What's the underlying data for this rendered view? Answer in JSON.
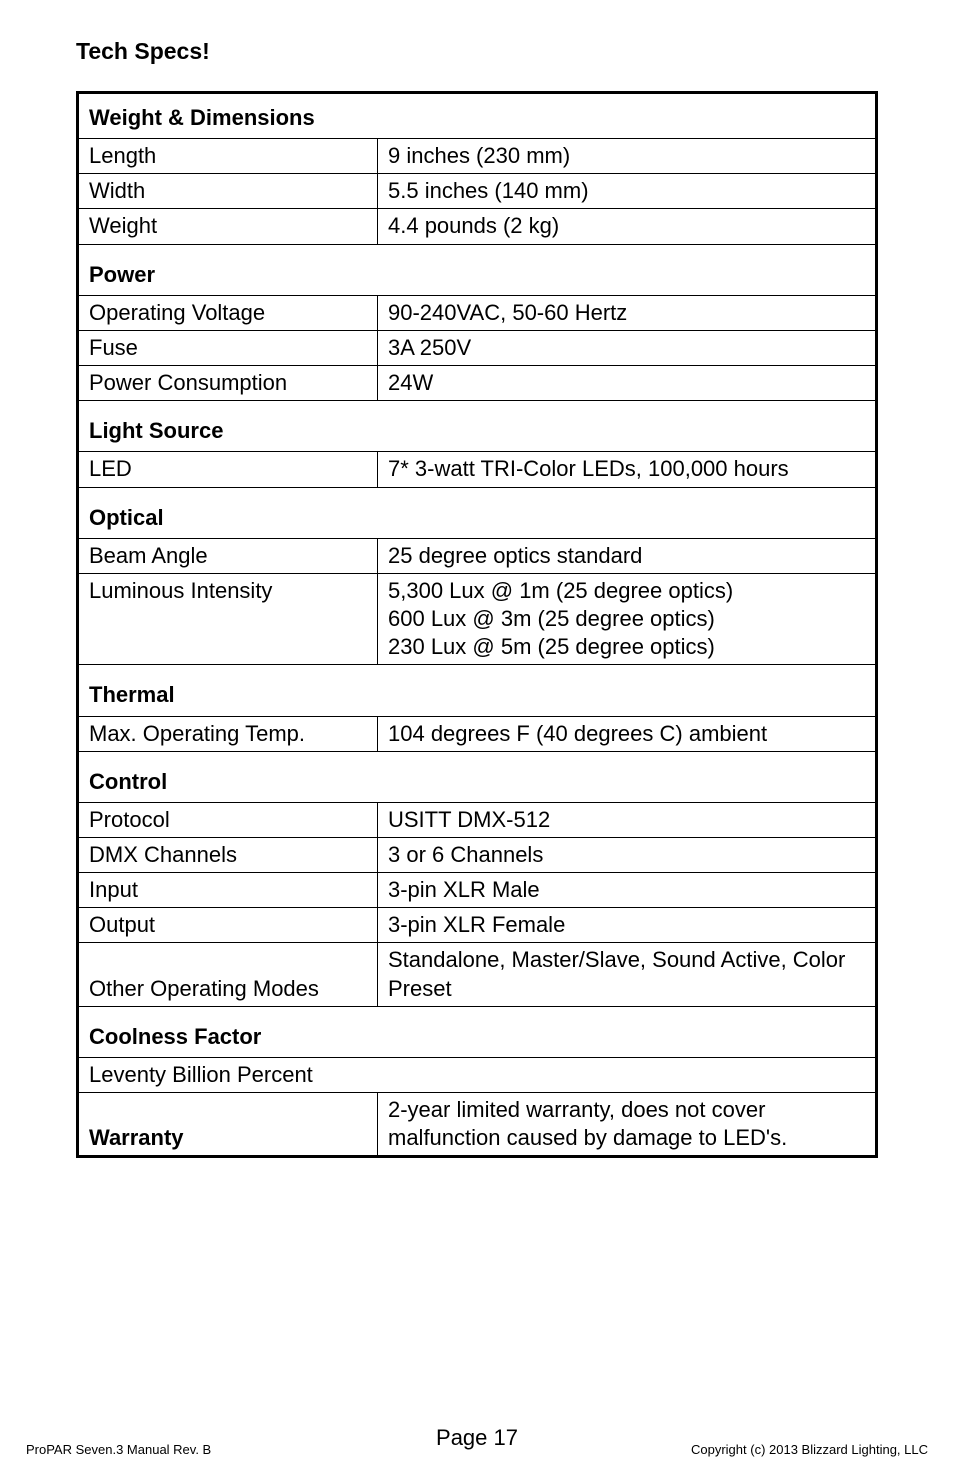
{
  "title": "Tech Specs!",
  "table": {
    "sections": [
      {
        "header": "Weight & Dimensions",
        "first": true,
        "rows": [
          {
            "label": "Length",
            "value": "9 inches (230 mm)"
          },
          {
            "label": "Width",
            "value": "5.5 inches (140 mm)"
          },
          {
            "label": "Weight",
            "value": "4.4 pounds (2 kg)"
          }
        ]
      },
      {
        "header": "Power",
        "rows": [
          {
            "label": "Operating Voltage",
            "value": "90-240VAC, 50-60 Hertz"
          },
          {
            "label": "Fuse",
            "value": "3A 250V"
          },
          {
            "label": "Power Consumption",
            "value": "24W"
          }
        ]
      },
      {
        "header": "Light Source",
        "rows": [
          {
            "label": "LED",
            "value": "7* 3-watt TRI-Color LEDs, 100,000 hours"
          }
        ]
      },
      {
        "header": "Optical",
        "rows": [
          {
            "label": "Beam Angle",
            "value": "25 degree optics standard"
          },
          {
            "label": "Luminous Intensity",
            "value": "5,300 Lux @ 1m (25 degree optics)\n600 Lux @ 3m (25 degree optics)\n230 Lux @ 5m (25 degree optics)"
          }
        ]
      },
      {
        "header": "Thermal",
        "rows": [
          {
            "label": "Max. Operating Temp.",
            "value": "104 degrees F (40 degrees C) ambient"
          }
        ]
      },
      {
        "header": "Control",
        "rows": [
          {
            "label": "Protocol",
            "value": "USITT DMX-512"
          },
          {
            "label": "DMX Channels",
            "value": "3 or 6 Channels"
          },
          {
            "label": "Input",
            "value": "3-pin XLR Male"
          },
          {
            "label": "Output",
            "value": "3-pin XLR Female"
          },
          {
            "label": "Other Operating Modes",
            "value": "Standalone, Master/Slave, Sound Active, Color Preset"
          }
        ]
      },
      {
        "header": "Coolness Factor",
        "rows": [
          {
            "full": "Leventy Billion Percent"
          }
        ]
      }
    ],
    "warranty": {
      "label": "Warranty",
      "value": "2-year limited warranty, does not cover malfunction caused by damage to LED's."
    }
  },
  "footer": {
    "left": "ProPAR Seven.3 Manual Rev. B",
    "center": "Page 17",
    "right": "Copyright (c) 2013 Blizzard Lighting, LLC"
  }
}
